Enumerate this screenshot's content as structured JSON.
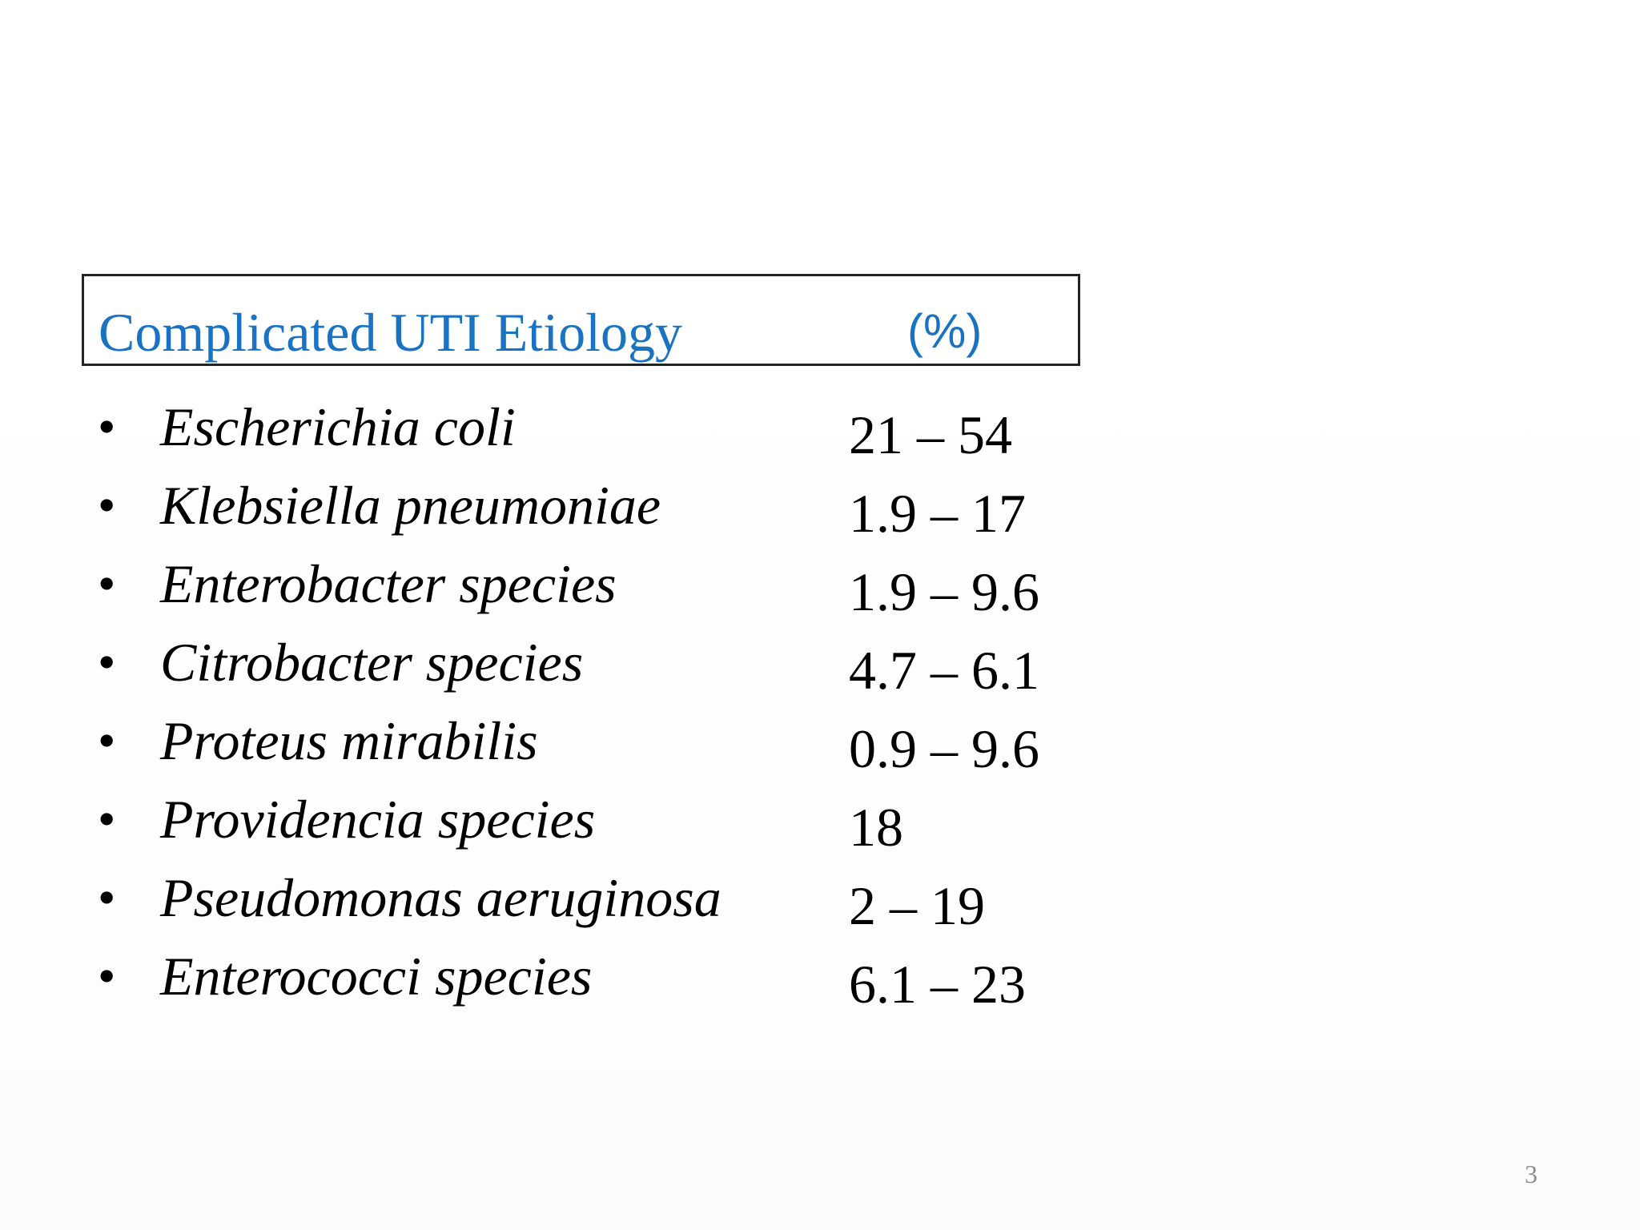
{
  "header": {
    "title": "Complicated UTI Etiology",
    "percent_label": "(%)"
  },
  "rows": [
    {
      "organism": "Escherichia coli",
      "percent": "21 – 54"
    },
    {
      "organism": "Klebsiella pneumoniae",
      "percent": "1.9 – 17"
    },
    {
      "organism": "Enterobacter species",
      "percent": "1.9 – 9.6"
    },
    {
      "organism": "Citrobacter species",
      "percent": "4.7 – 6.1"
    },
    {
      "organism": "Proteus mirabilis",
      "percent": "0.9 – 9.6"
    },
    {
      "organism": "Providencia species",
      "percent": "18"
    },
    {
      "organism": "Pseudomonas aeruginosa",
      "percent": "2 – 19"
    },
    {
      "organism": "Enterococci species",
      "percent": "6.1 – 23"
    }
  ],
  "bullet_symbol": "•",
  "page_number": "3",
  "colors": {
    "header_text": "#1a73c2",
    "body_text": "#000000",
    "page_number": "#8a8a8a"
  }
}
